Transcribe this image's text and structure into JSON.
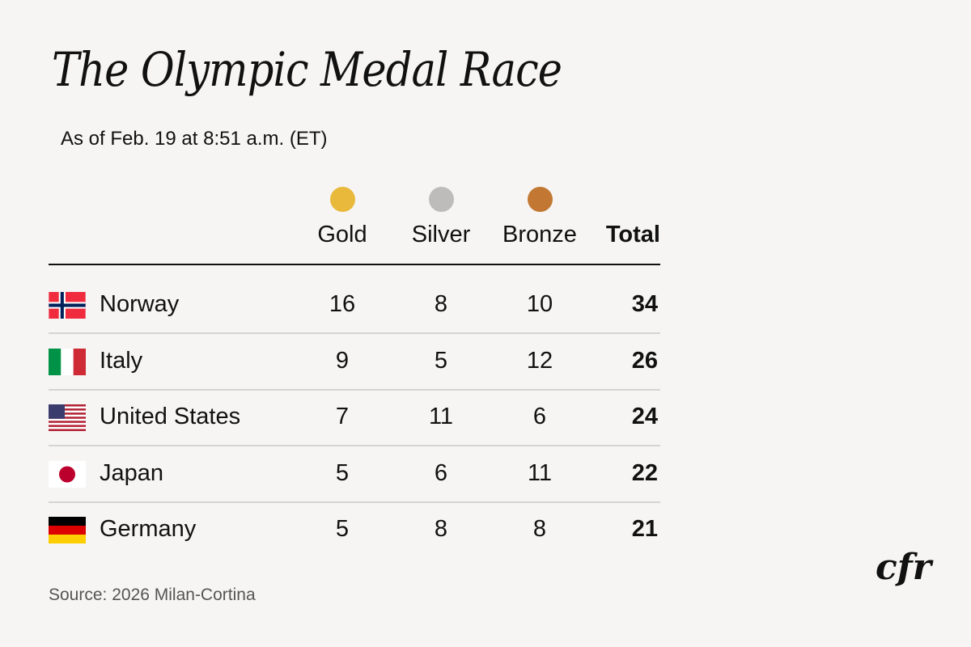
{
  "title": "The Olympic Medal Race",
  "subtitle": "As of Feb. 19 at 8:51 a.m. (ET)",
  "source": "Source: 2026 Milan-Cortina",
  "logo": "cfr",
  "colors": {
    "gold": "#e9b93c",
    "silver": "#bdbcba",
    "bronze": "#c27832"
  },
  "chart_data": {
    "type": "table",
    "columns": [
      "Gold",
      "Silver",
      "Bronze",
      "Total"
    ],
    "rows": [
      {
        "country": "Norway",
        "flag": "norway-flag",
        "values": [
          16,
          8,
          10,
          34
        ]
      },
      {
        "country": "Italy",
        "flag": "italy-flag",
        "values": [
          9,
          5,
          12,
          26
        ]
      },
      {
        "country": "United States",
        "flag": "us-flag",
        "values": [
          7,
          11,
          6,
          24
        ]
      },
      {
        "country": "Japan",
        "flag": "japan-flag",
        "values": [
          5,
          6,
          11,
          22
        ]
      },
      {
        "country": "Germany",
        "flag": "germany-flag",
        "values": [
          5,
          8,
          8,
          21
        ]
      }
    ]
  }
}
